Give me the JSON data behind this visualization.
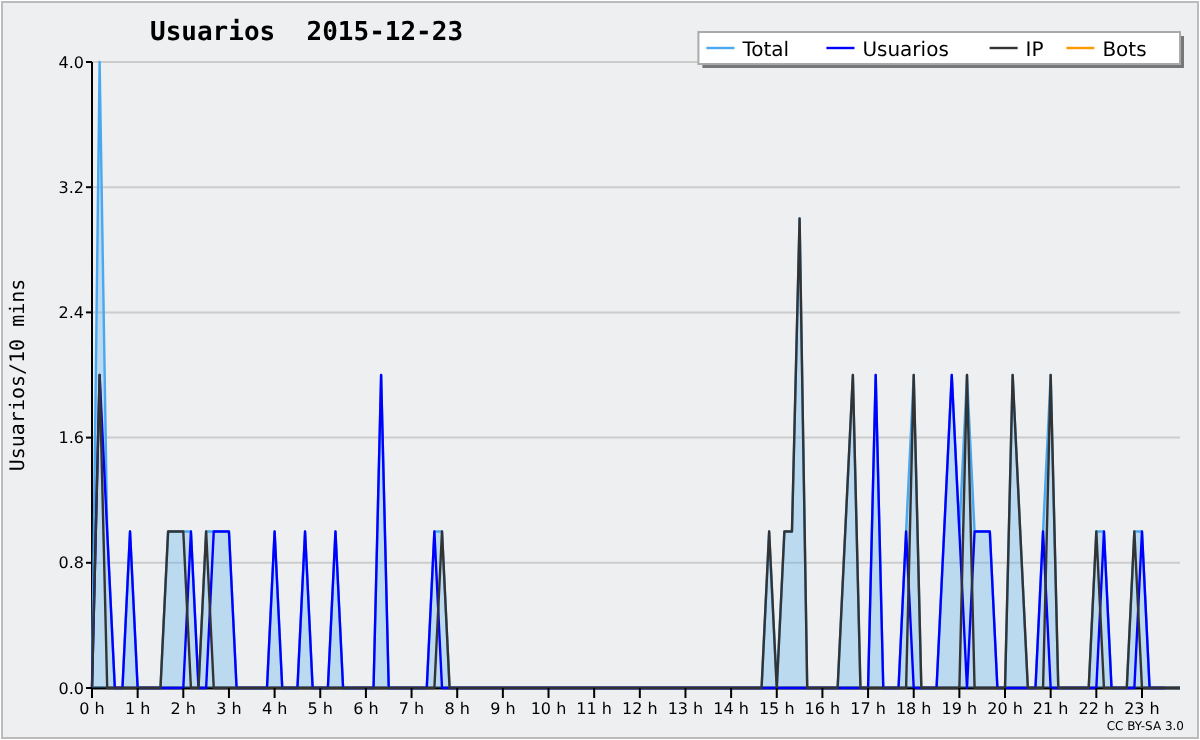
{
  "chart_data": {
    "type": "line",
    "title": "Usuarios  2015-12-23",
    "ylabel": "Usuarios/10 mins",
    "x": [
      0,
      0.167,
      0.333,
      0.5,
      0.667,
      0.833,
      1,
      1.167,
      1.333,
      1.5,
      1.667,
      1.833,
      2,
      2.167,
      2.333,
      2.5,
      2.667,
      2.833,
      3,
      3.167,
      3.333,
      3.5,
      3.667,
      3.833,
      4,
      4.167,
      4.333,
      4.5,
      4.667,
      4.833,
      5,
      5.167,
      5.333,
      5.5,
      5.667,
      5.833,
      6,
      6.167,
      6.333,
      6.5,
      6.667,
      6.833,
      7,
      7.167,
      7.333,
      7.5,
      7.667,
      7.833,
      8,
      8.167,
      8.333,
      8.5,
      8.667,
      8.833,
      9,
      9.167,
      9.333,
      9.5,
      9.667,
      9.833,
      10,
      10.167,
      10.333,
      10.5,
      10.667,
      10.833,
      11,
      11.167,
      11.333,
      11.5,
      11.667,
      11.833,
      12,
      12.167,
      12.333,
      12.5,
      12.667,
      12.833,
      13,
      13.167,
      13.333,
      13.5,
      13.667,
      13.833,
      14,
      14.167,
      14.333,
      14.5,
      14.667,
      14.833,
      15,
      15.167,
      15.333,
      15.5,
      15.667,
      15.833,
      16,
      16.167,
      16.333,
      16.5,
      16.667,
      16.833,
      17,
      17.167,
      17.333,
      17.5,
      17.667,
      17.833,
      18,
      18.167,
      18.333,
      18.5,
      18.667,
      18.833,
      19,
      19.167,
      19.333,
      19.5,
      19.667,
      19.833,
      20,
      20.167,
      20.333,
      20.5,
      20.667,
      20.833,
      21,
      21.167,
      21.333,
      21.5,
      21.667,
      21.833,
      22,
      22.167,
      22.333,
      22.5,
      22.667,
      22.833,
      23,
      23.167,
      23.333,
      23.5,
      23.667,
      23.833
    ],
    "series": [
      {
        "name": "Total",
        "type": "area",
        "color": "#4aa8f0",
        "values": [
          0,
          4,
          1,
          0,
          0,
          1,
          0,
          0,
          0,
          0,
          1,
          1,
          1,
          1,
          0,
          1,
          1,
          1,
          1,
          0,
          0,
          0,
          0,
          0,
          1,
          0,
          0,
          0,
          1,
          0,
          0,
          0,
          1,
          0,
          0,
          0,
          0,
          0,
          2,
          0,
          0,
          0,
          0,
          0,
          0,
          1,
          1,
          0,
          0,
          0,
          0,
          0,
          0,
          0,
          0,
          0,
          0,
          0,
          0,
          0,
          0,
          0,
          0,
          0,
          0,
          0,
          0,
          0,
          0,
          0,
          0,
          0,
          0,
          0,
          0,
          0,
          0,
          0,
          0,
          0,
          0,
          0,
          0,
          0,
          0,
          0,
          0,
          0,
          0,
          1,
          0,
          1,
          1,
          3,
          0,
          0,
          0,
          0,
          0,
          1,
          2,
          0,
          0,
          2,
          0,
          0,
          0,
          1,
          2,
          0,
          0,
          0,
          1,
          2,
          1,
          2,
          1,
          1,
          1,
          0,
          0,
          2,
          1,
          0,
          0,
          1,
          2,
          0,
          0,
          0,
          0,
          0,
          1,
          1,
          0,
          0,
          0,
          1,
          1,
          0,
          0,
          0,
          0,
          0
        ]
      },
      {
        "name": "Usuarios",
        "color": "#0000ff",
        "values": [
          0,
          2,
          1,
          0,
          0,
          1,
          0,
          0,
          0,
          0,
          0,
          0,
          0,
          1,
          0,
          0,
          1,
          1,
          1,
          0,
          0,
          0,
          0,
          0,
          1,
          0,
          0,
          0,
          1,
          0,
          0,
          0,
          1,
          0,
          0,
          0,
          0,
          0,
          2,
          0,
          0,
          0,
          0,
          0,
          0,
          1,
          0,
          0,
          0,
          0,
          0,
          0,
          0,
          0,
          0,
          0,
          0,
          0,
          0,
          0,
          0,
          0,
          0,
          0,
          0,
          0,
          0,
          0,
          0,
          0,
          0,
          0,
          0,
          0,
          0,
          0,
          0,
          0,
          0,
          0,
          0,
          0,
          0,
          0,
          0,
          0,
          0,
          0,
          0,
          0,
          0,
          0,
          0,
          0,
          0,
          0,
          0,
          0,
          0,
          0,
          0,
          0,
          0,
          2,
          0,
          0,
          0,
          1,
          0,
          0,
          0,
          0,
          1,
          2,
          1,
          0,
          1,
          1,
          1,
          0,
          0,
          0,
          0,
          0,
          0,
          1,
          0,
          0,
          0,
          0,
          0,
          0,
          0,
          1,
          0,
          0,
          0,
          0,
          1,
          0,
          0,
          0,
          null,
          null
        ]
      },
      {
        "name": "IP",
        "color": "#333333",
        "values": [
          0,
          2,
          0,
          0,
          0,
          0,
          0,
          0,
          0,
          0,
          1,
          1,
          1,
          0,
          0,
          1,
          0,
          0,
          0,
          0,
          0,
          0,
          0,
          0,
          0,
          0,
          0,
          0,
          0,
          0,
          0,
          0,
          0,
          0,
          0,
          0,
          0,
          0,
          0,
          0,
          0,
          0,
          0,
          0,
          0,
          0,
          1,
          0,
          0,
          0,
          0,
          0,
          0,
          0,
          0,
          0,
          0,
          0,
          0,
          0,
          0,
          0,
          0,
          0,
          0,
          0,
          0,
          0,
          0,
          0,
          0,
          0,
          0,
          0,
          0,
          0,
          0,
          0,
          0,
          0,
          0,
          0,
          0,
          0,
          0,
          0,
          0,
          0,
          0,
          1,
          0,
          1,
          1,
          3,
          0,
          0,
          0,
          0,
          0,
          1,
          2,
          0,
          0,
          0,
          0,
          0,
          0,
          0,
          2,
          0,
          0,
          0,
          0,
          0,
          0,
          2,
          0,
          0,
          0,
          0,
          0,
          2,
          1,
          0,
          0,
          0,
          2,
          0,
          0,
          0,
          0,
          0,
          1,
          0,
          0,
          0,
          0,
          1,
          0,
          0,
          0,
          0,
          0,
          0
        ]
      },
      {
        "name": "Bots",
        "color": "#ff9900",
        "values": [
          null,
          null,
          null,
          null,
          null,
          null,
          null,
          null,
          null,
          null,
          null,
          null,
          null,
          null,
          null,
          null,
          null,
          null,
          null,
          null,
          null,
          null,
          null,
          null,
          null,
          null,
          null,
          null,
          null,
          null,
          null,
          null,
          null,
          null,
          null,
          null,
          null,
          null,
          null,
          null,
          null,
          null,
          null,
          null,
          null,
          null,
          null,
          null,
          null,
          null,
          null,
          null,
          null,
          null,
          null,
          null,
          null,
          null,
          null,
          null,
          null,
          null,
          null,
          null,
          null,
          null,
          null,
          null,
          null,
          null,
          null,
          null,
          null,
          null,
          null,
          null,
          null,
          null,
          null,
          null,
          null,
          null,
          null,
          null,
          null,
          null,
          null,
          null,
          null,
          null,
          null,
          null,
          null,
          null,
          null,
          null,
          null,
          null,
          null,
          null,
          null,
          null,
          null,
          null,
          null,
          null,
          null,
          null,
          null,
          null,
          null,
          null,
          null,
          null,
          null,
          null,
          null,
          null,
          null,
          null,
          null,
          null,
          null,
          null,
          null,
          null,
          null,
          null,
          null,
          null,
          null,
          null,
          null,
          null,
          null,
          null,
          null,
          null,
          null,
          null,
          null,
          null,
          null,
          null
        ]
      }
    ],
    "xlim": [
      0,
      23.833
    ],
    "xticks": [
      {
        "value": 0,
        "label": "0 h"
      },
      {
        "value": 1,
        "label": "1 h"
      },
      {
        "value": 2,
        "label": "2 h"
      },
      {
        "value": 3,
        "label": "3 h"
      },
      {
        "value": 4,
        "label": "4 h"
      },
      {
        "value": 5,
        "label": "5 h"
      },
      {
        "value": 6,
        "label": "6 h"
      },
      {
        "value": 7,
        "label": "7 h"
      },
      {
        "value": 8,
        "label": "8 h"
      },
      {
        "value": 9,
        "label": "9 h"
      },
      {
        "value": 10,
        "label": "10 h"
      },
      {
        "value": 11,
        "label": "11 h"
      },
      {
        "value": 12,
        "label": "12 h"
      },
      {
        "value": 13,
        "label": "13 h"
      },
      {
        "value": 14,
        "label": "14 h"
      },
      {
        "value": 15,
        "label": "15 h"
      },
      {
        "value": 16,
        "label": "16 h"
      },
      {
        "value": 17,
        "label": "17 h"
      },
      {
        "value": 18,
        "label": "18 h"
      },
      {
        "value": 19,
        "label": "19 h"
      },
      {
        "value": 20,
        "label": "20 h"
      },
      {
        "value": 21,
        "label": "21 h"
      },
      {
        "value": 22,
        "label": "22 h"
      },
      {
        "value": 23,
        "label": "23 h"
      }
    ],
    "ylim": [
      0,
      4
    ],
    "yticks": [
      {
        "value": 0,
        "label": "0.0"
      },
      0.8,
      1.6,
      2.4,
      3.2,
      {
        "value": 4,
        "label": "4.0"
      }
    ],
    "grid": "y",
    "legend": "top right",
    "marker": "none",
    "line_style": "solid",
    "annotations": [
      "CC BY-SA 3.0"
    ]
  }
}
